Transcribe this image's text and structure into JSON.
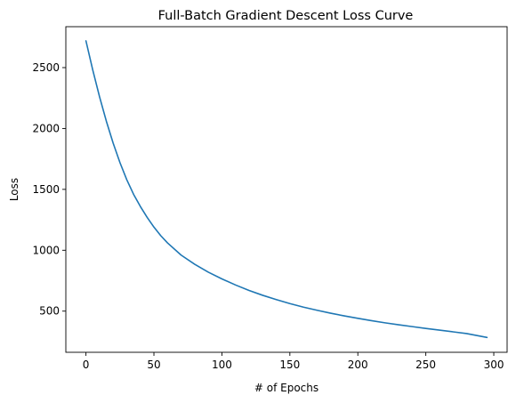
{
  "chart_data": {
    "type": "line",
    "title": "Full-Batch Gradient Descent Loss Curve",
    "xlabel": "# of Epochs",
    "ylabel": "Loss",
    "xlim": [
      -14.8,
      309.8
    ],
    "ylim": [
      162,
      2836
    ],
    "xticks": [
      0,
      50,
      100,
      150,
      200,
      250,
      300
    ],
    "yticks": [
      500,
      1000,
      1500,
      2000,
      2500
    ],
    "grid": false,
    "color": "#1f77b4",
    "series": [
      {
        "x": [
          0,
          5,
          10,
          15,
          20,
          25,
          30,
          35,
          40,
          45,
          50,
          55,
          60,
          70,
          80,
          90,
          100,
          110,
          120,
          130,
          140,
          150,
          160,
          170,
          180,
          190,
          200,
          210,
          220,
          230,
          240,
          250,
          260,
          270,
          280,
          295
        ],
        "y": [
          2720,
          2480,
          2260,
          2060,
          1880,
          1720,
          1580,
          1460,
          1360,
          1270,
          1190,
          1120,
          1060,
          960,
          885,
          820,
          765,
          715,
          670,
          630,
          595,
          562,
          533,
          507,
          483,
          461,
          441,
          422,
          404,
          388,
          373,
          358,
          344,
          330,
          316,
          284
        ]
      }
    ]
  }
}
